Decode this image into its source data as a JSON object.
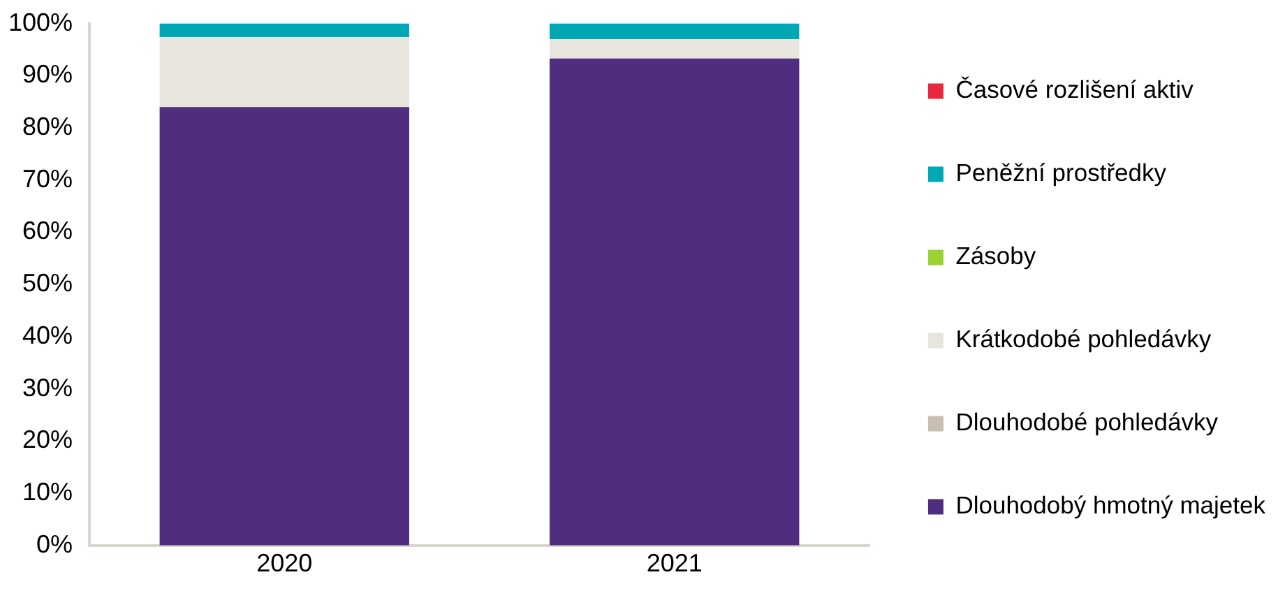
{
  "chart_data": {
    "type": "bar",
    "stacked": true,
    "categories": [
      "2020",
      "2021"
    ],
    "series": [
      {
        "name": "Dlouhodobý hmotný majetek",
        "color": "#4f2d7f",
        "values": [
          84,
          93.3
        ]
      },
      {
        "name": "Dlouhodobé pohledávky",
        "color": "#c8bfb0",
        "values": [
          0,
          0
        ]
      },
      {
        "name": "Krátkodobé pohledávky",
        "color": "#e8e5df",
        "values": [
          13.4,
          3.7
        ]
      },
      {
        "name": "Zásoby",
        "color": "#9ad232",
        "values": [
          0,
          0
        ]
      },
      {
        "name": "Peněžní prostředky",
        "color": "#00a8b5",
        "values": [
          2.6,
          3.0
        ]
      },
      {
        "name": "Časové rozlišení aktiv",
        "color": "#e8283f",
        "values": [
          0,
          0
        ]
      }
    ],
    "ylim": [
      0,
      100
    ],
    "yticks": [
      {
        "value": 0,
        "label": "0%"
      },
      {
        "value": 10,
        "label": "10%"
      },
      {
        "value": 20,
        "label": "20%"
      },
      {
        "value": 30,
        "label": "30%"
      },
      {
        "value": 40,
        "label": "40%"
      },
      {
        "value": 50,
        "label": "50%"
      },
      {
        "value": 60,
        "label": "60%"
      },
      {
        "value": 70,
        "label": "70%"
      },
      {
        "value": 80,
        "label": "80%"
      },
      {
        "value": 90,
        "label": "90%"
      },
      {
        "value": 100,
        "label": "100%"
      }
    ],
    "grid": false,
    "legend": "right"
  }
}
